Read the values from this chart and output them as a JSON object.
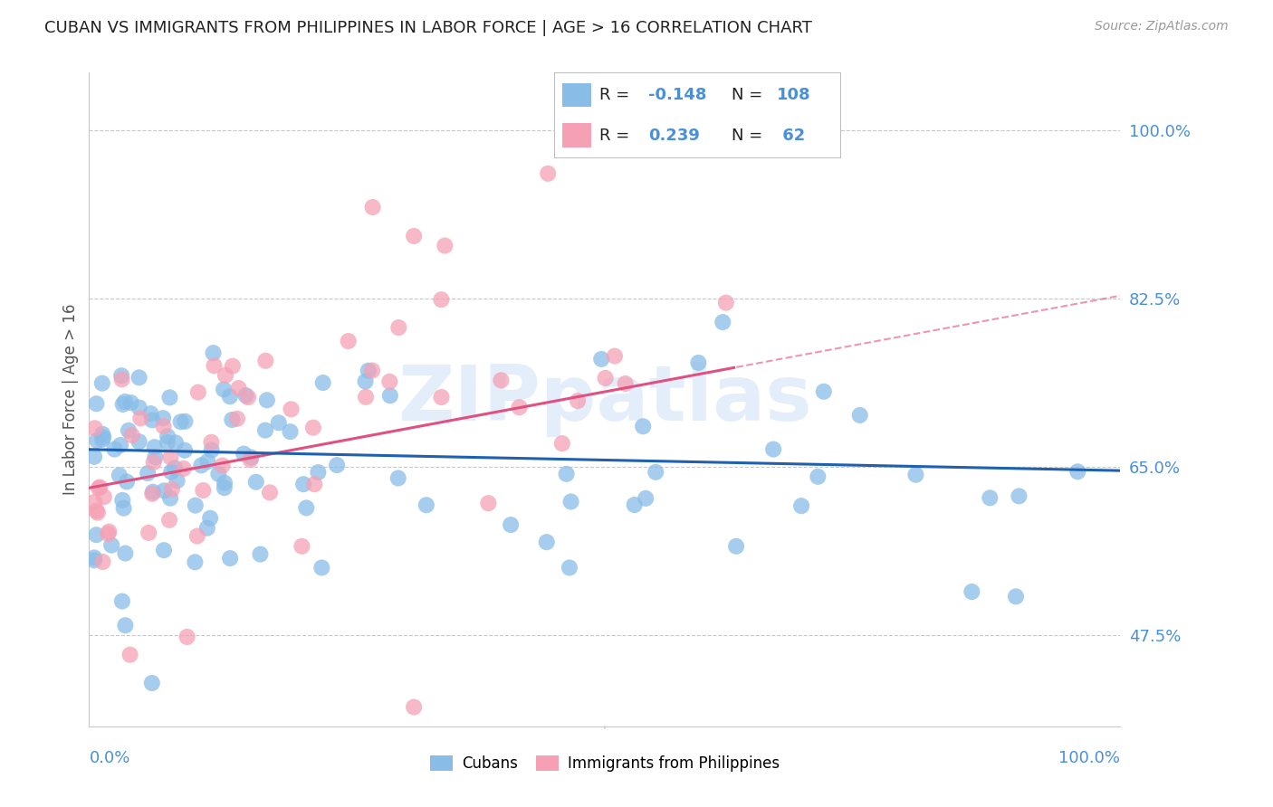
{
  "title": "CUBAN VS IMMIGRANTS FROM PHILIPPINES IN LABOR FORCE | AGE > 16 CORRELATION CHART",
  "source": "Source: ZipAtlas.com",
  "ylabel": "In Labor Force | Age > 16",
  "xlim": [
    0.0,
    1.0
  ],
  "ylim": [
    0.38,
    1.06
  ],
  "yticks": [
    0.475,
    0.65,
    0.825,
    1.0
  ],
  "ytick_labels": [
    "47.5%",
    "65.0%",
    "82.5%",
    "100.0%"
  ],
  "cubans_color": "#89bde8",
  "philippines_color": "#f5a0b5",
  "cubans_line_color": "#2060b0",
  "philippines_line_color": "#e05080",
  "R_cubans": -0.148,
  "N_cubans": 108,
  "R_philippines": 0.239,
  "N_philippines": 62,
  "axis_label_color": "#4a90d9",
  "watermark": "ZIPpatlas",
  "background_color": "#ffffff",
  "grid_color": "#c8c8c8",
  "title_fontsize": 13,
  "source_fontsize": 10,
  "ylabel_fontsize": 12
}
